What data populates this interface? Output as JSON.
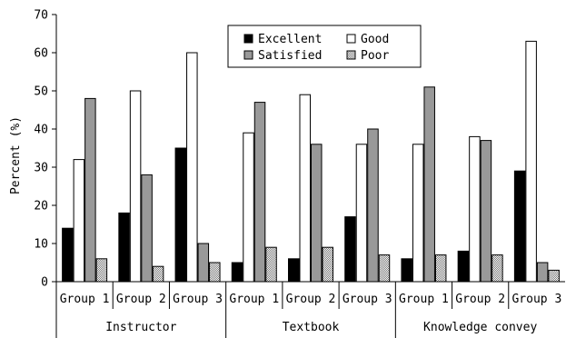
{
  "chart_data": {
    "type": "bar",
    "title": "",
    "ylabel": "Percent (%)",
    "xlabel": "",
    "ylim": [
      0,
      70
    ],
    "y_ticks": [
      0,
      10,
      20,
      30,
      40,
      50,
      60,
      70
    ],
    "grid": false,
    "legend_position": "top-center",
    "category_groups": [
      {
        "label": "Instructor",
        "subcategories": [
          "Group 1",
          "Group 2",
          "Group 3"
        ]
      },
      {
        "label": "Textbook",
        "subcategories": [
          "Group 1",
          "Group 2",
          "Group 3"
        ]
      },
      {
        "label": "Knowledge convey",
        "subcategories": [
          "Group 1",
          "Group 2",
          "Group 3"
        ]
      }
    ],
    "series": [
      {
        "name": "Excellent",
        "fill": "#000000",
        "pattern": "solid",
        "values": [
          14,
          18,
          35,
          5,
          6,
          17,
          6,
          8,
          29
        ]
      },
      {
        "name": "Good",
        "fill": "#ffffff",
        "pattern": "solid",
        "values": [
          32,
          50,
          60,
          39,
          49,
          36,
          36,
          38,
          63
        ]
      },
      {
        "name": "Satisfied",
        "fill": "#999999",
        "pattern": "solid",
        "values": [
          48,
          28,
          10,
          47,
          36,
          40,
          51,
          37,
          5
        ]
      },
      {
        "name": "Poor",
        "fill": "#cfcfcf",
        "pattern": "checker",
        "values": [
          6,
          4,
          5,
          9,
          9,
          7,
          7,
          7,
          3
        ]
      }
    ]
  }
}
